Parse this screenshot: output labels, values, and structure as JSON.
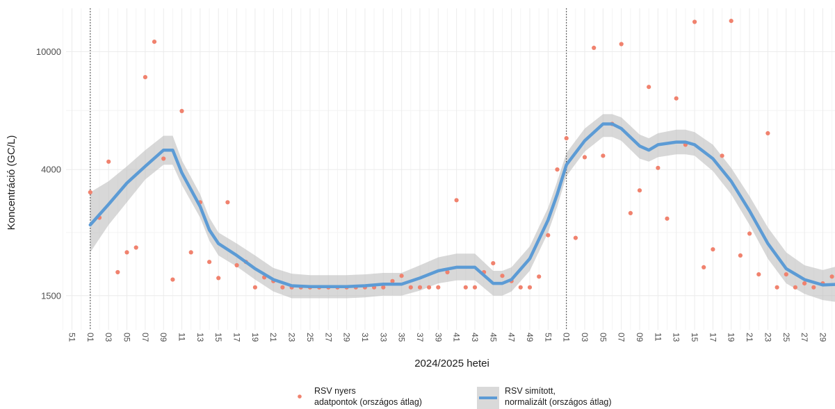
{
  "chart_data": {
    "type": "scatter",
    "xlabel": "2024/2025 hetei",
    "ylabel": "Koncentráció (GC/L)",
    "y_scale": "log",
    "ylim": [
      1150,
      14000
    ],
    "y_ticks": [
      {
        "value": 1500,
        "label": "1500"
      },
      {
        "value": 4000,
        "label": "4000"
      },
      {
        "value": 10000,
        "label": "10000"
      }
    ],
    "x_week_ticks": [
      "51",
      "01",
      "03",
      "05",
      "07",
      "09",
      "11",
      "13",
      "15",
      "17",
      "19",
      "21",
      "23",
      "25",
      "27",
      "29",
      "31",
      "33",
      "35",
      "37",
      "39",
      "41",
      "43",
      "45",
      "47",
      "49",
      "51",
      "01",
      "03",
      "05",
      "07",
      "09",
      "11",
      "13",
      "15",
      "17",
      "19",
      "21",
      "23",
      "25",
      "27",
      "29",
      "31"
    ],
    "year_boundaries": [
      "2024-W01",
      "2025-W01"
    ],
    "grid": true,
    "legend_position": "bottom",
    "series": [
      {
        "name": "RSV nyers\n adatpontok (országos átlag)",
        "kind": "points",
        "color": "#f0826e",
        "points": [
          [
            "2024-W01",
            3350
          ],
          [
            "2024-W02",
            2750
          ],
          [
            "2024-W03",
            4250
          ],
          [
            "2024-W04",
            1800
          ],
          [
            "2024-W05",
            2100
          ],
          [
            "2024-W06",
            2180
          ],
          [
            "2024-W07",
            8200
          ],
          [
            "2024-W08",
            10800
          ],
          [
            "2024-W09",
            4350
          ],
          [
            "2024-W10",
            1700
          ],
          [
            "2024-W11",
            6300
          ],
          [
            "2024-W12",
            2100
          ],
          [
            "2024-W13",
            3100
          ],
          [
            "2024-W14",
            1950
          ],
          [
            "2024-W15",
            1720
          ],
          [
            "2024-W16",
            3100
          ],
          [
            "2024-W17",
            1900
          ],
          [
            "2024-W18",
            1950
          ],
          [
            "2024-W19",
            1600
          ],
          [
            "2024-W20",
            1730
          ],
          [
            "2024-W21",
            1680
          ],
          [
            "2024-W22",
            1600
          ],
          [
            "2024-W23",
            1600
          ],
          [
            "2024-W24",
            1600
          ],
          [
            "2024-W25",
            1600
          ],
          [
            "2024-W26",
            1600
          ],
          [
            "2024-W27",
            1600
          ],
          [
            "2024-W28",
            1600
          ],
          [
            "2024-W29",
            1600
          ],
          [
            "2024-W30",
            1600
          ],
          [
            "2024-W31",
            1600
          ],
          [
            "2024-W32",
            1600
          ],
          [
            "2024-W33",
            1600
          ],
          [
            "2024-W34",
            1680
          ],
          [
            "2024-W35",
            1750
          ],
          [
            "2024-W36",
            1600
          ],
          [
            "2024-W37",
            1600
          ],
          [
            "2024-W38",
            1600
          ],
          [
            "2024-W39",
            1600
          ],
          [
            "2024-W40",
            1800
          ],
          [
            "2024-W41",
            3150
          ],
          [
            "2024-W42",
            1600
          ],
          [
            "2024-W43",
            1600
          ],
          [
            "2024-W44",
            1800
          ],
          [
            "2024-W45",
            1930
          ],
          [
            "2024-W46",
            1750
          ],
          [
            "2024-W47",
            1680
          ],
          [
            "2024-W48",
            1600
          ],
          [
            "2024-W49",
            1600
          ],
          [
            "2024-W50",
            1740
          ],
          [
            "2024-W51",
            2400
          ],
          [
            "2024-W52",
            4000
          ],
          [
            "2025-W01",
            5100
          ],
          [
            "2025-W02",
            2350
          ],
          [
            "2025-W03",
            4400
          ],
          [
            "2025-W04",
            10300
          ],
          [
            "2025-W05",
            4450
          ],
          [
            "2025-W06",
            5700
          ],
          [
            "2025-W07",
            10600
          ],
          [
            "2025-W08",
            2850
          ],
          [
            "2025-W09",
            3400
          ],
          [
            "2025-W10",
            7600
          ],
          [
            "2025-W11",
            4050
          ],
          [
            "2025-W12",
            2730
          ],
          [
            "2025-W13",
            6950
          ],
          [
            "2025-W14",
            4850
          ],
          [
            "2025-W15",
            12600
          ],
          [
            "2025-W16",
            1870
          ],
          [
            "2025-W17",
            2150
          ],
          [
            "2025-W18",
            4450
          ],
          [
            "2025-W19",
            12700
          ],
          [
            "2025-W20",
            2050
          ],
          [
            "2025-W21",
            2430
          ],
          [
            "2025-W22",
            1770
          ],
          [
            "2025-W23",
            5300
          ],
          [
            "2025-W24",
            1600
          ],
          [
            "2025-W25",
            1770
          ],
          [
            "2025-W26",
            1600
          ],
          [
            "2025-W27",
            1650
          ],
          [
            "2025-W28",
            1600
          ],
          [
            "2025-W29",
            1650
          ],
          [
            "2025-W30",
            1740
          ],
          [
            "2025-W31",
            1600
          ],
          [
            "2025-W32",
            1600
          ]
        ]
      },
      {
        "name": "RSV simított,\n normalizált (országos átlag)",
        "kind": "line_with_band",
        "color": "#5c9bd5",
        "band_color": "#bebebe",
        "points": [
          [
            "2024-W01",
            2600,
            2100,
            3350
          ],
          [
            "2024-W03",
            3050,
            2600,
            3650
          ],
          [
            "2024-W05",
            3600,
            3100,
            4100
          ],
          [
            "2024-W07",
            4100,
            3700,
            4650
          ],
          [
            "2024-W09",
            4650,
            4150,
            5200
          ],
          [
            "2024-W10",
            4650,
            4150,
            5200
          ],
          [
            "2024-W11",
            3900,
            3550,
            4300
          ],
          [
            "2024-W13",
            3000,
            2750,
            3300
          ],
          [
            "2024-W14",
            2500,
            2300,
            2750
          ],
          [
            "2024-W15",
            2250,
            2050,
            2450
          ],
          [
            "2024-W17",
            2050,
            1880,
            2250
          ],
          [
            "2024-W19",
            1850,
            1700,
            2050
          ],
          [
            "2024-W21",
            1700,
            1550,
            1860
          ],
          [
            "2024-W23",
            1620,
            1470,
            1780
          ],
          [
            "2024-W25",
            1610,
            1470,
            1760
          ],
          [
            "2024-W27",
            1610,
            1470,
            1760
          ],
          [
            "2024-W29",
            1610,
            1470,
            1760
          ],
          [
            "2024-W31",
            1620,
            1480,
            1770
          ],
          [
            "2024-W33",
            1640,
            1500,
            1790
          ],
          [
            "2024-W35",
            1640,
            1500,
            1790
          ],
          [
            "2024-W37",
            1720,
            1560,
            1900
          ],
          [
            "2024-W39",
            1820,
            1650,
            2020
          ],
          [
            "2024-W41",
            1870,
            1690,
            2080
          ],
          [
            "2024-W43",
            1870,
            1690,
            2080
          ],
          [
            "2024-W45",
            1650,
            1500,
            1820
          ],
          [
            "2024-W46",
            1650,
            1500,
            1820
          ],
          [
            "2024-W47",
            1700,
            1550,
            1870
          ],
          [
            "2024-W49",
            2000,
            1820,
            2200
          ],
          [
            "2024-W51",
            2700,
            2450,
            2970
          ],
          [
            "2024-W52",
            3300,
            3000,
            3650
          ],
          [
            "2025-W01",
            4150,
            3800,
            4550
          ],
          [
            "2025-W03",
            5000,
            4600,
            5500
          ],
          [
            "2025-W05",
            5700,
            5150,
            6150
          ],
          [
            "2025-W06",
            5700,
            5150,
            6150
          ],
          [
            "2025-W07",
            5500,
            5000,
            6000
          ],
          [
            "2025-W09",
            4800,
            4350,
            5250
          ],
          [
            "2025-W10",
            4650,
            4250,
            5100
          ],
          [
            "2025-W11",
            4850,
            4400,
            5300
          ],
          [
            "2025-W13",
            4950,
            4500,
            5450
          ],
          [
            "2025-W14",
            4950,
            4500,
            5450
          ],
          [
            "2025-W15",
            4850,
            4450,
            5350
          ],
          [
            "2025-W17",
            4350,
            3950,
            4850
          ],
          [
            "2025-W19",
            3650,
            3300,
            4050
          ],
          [
            "2025-W21",
            2900,
            2600,
            3250
          ],
          [
            "2025-W23",
            2250,
            2000,
            2550
          ],
          [
            "2025-W25",
            1850,
            1650,
            2100
          ],
          [
            "2025-W27",
            1700,
            1520,
            1900
          ],
          [
            "2025-W29",
            1630,
            1450,
            1830
          ],
          [
            "2025-W31",
            1640,
            1420,
            1900
          ],
          [
            "2025-W32",
            1700,
            1390,
            2150
          ]
        ]
      }
    ]
  }
}
